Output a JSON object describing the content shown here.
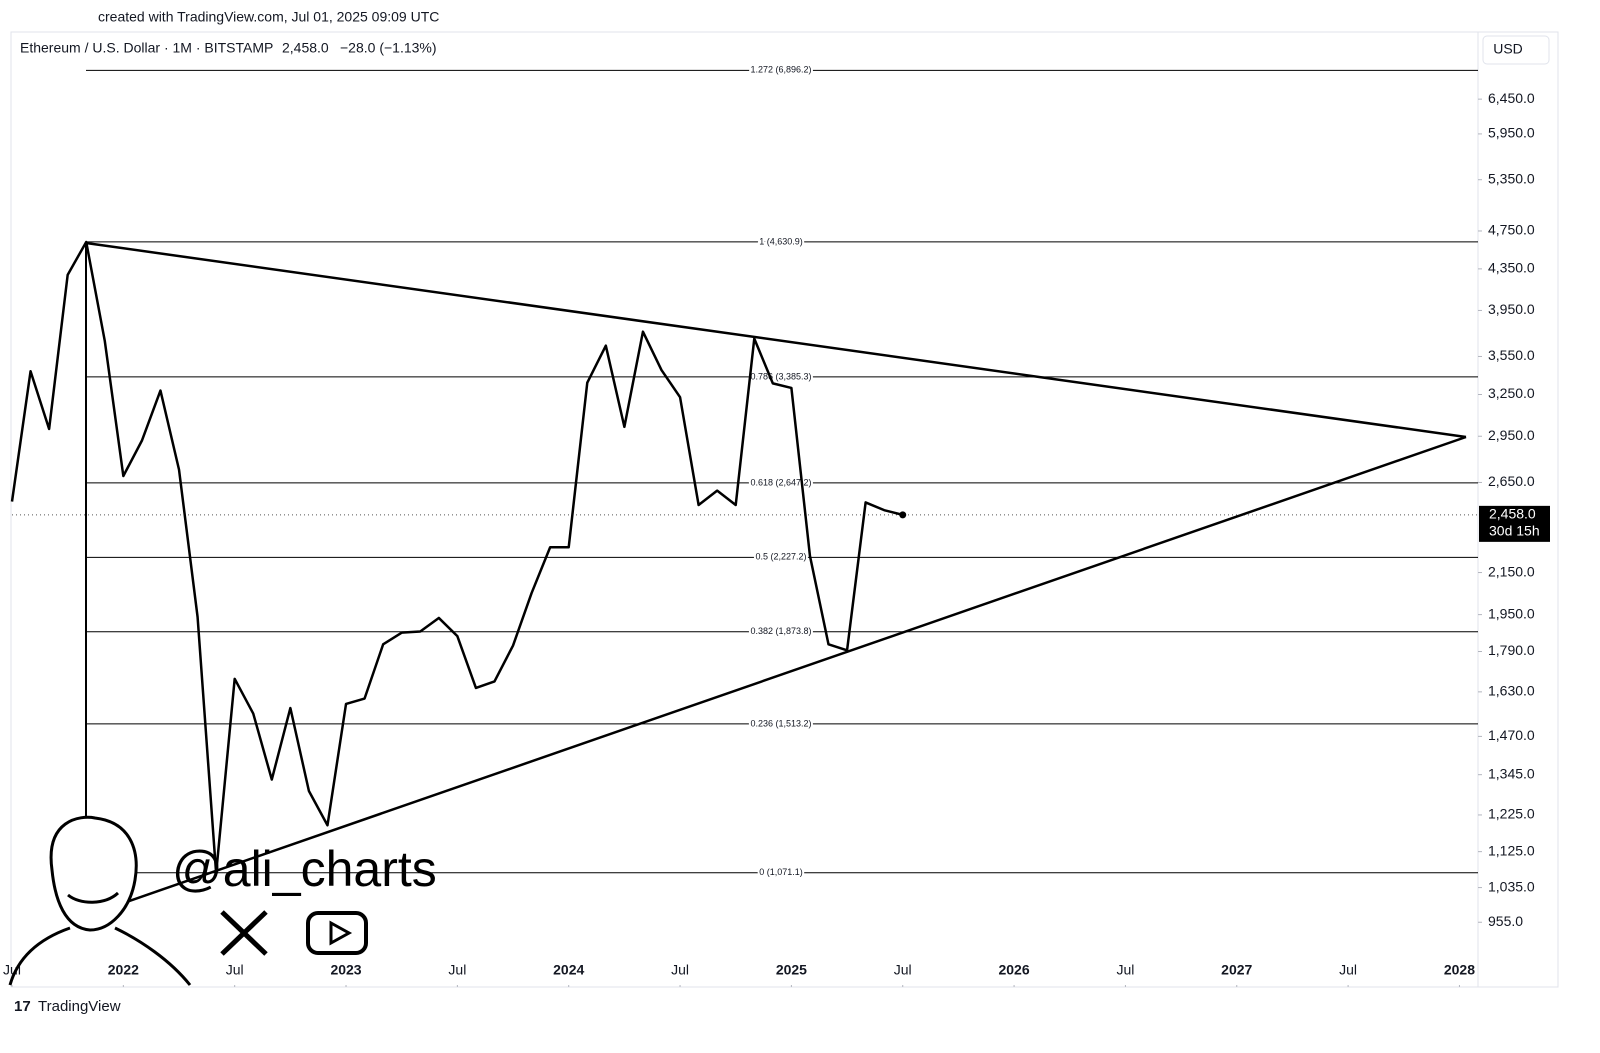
{
  "header": {
    "created": "created with TradingView.com, Jul 01, 2025 09:09 UTC",
    "symbol": "Ethereum / U.S. Dollar · 1M · BITSTAMP",
    "price": "2,458.0",
    "change": "−28.0 (−1.13%)",
    "currency": "USD"
  },
  "chart_data": {
    "type": "line",
    "log_scale": true,
    "x": [
      "2021-07",
      "2021-08",
      "2021-09",
      "2021-10",
      "2021-11",
      "2021-12",
      "2022-01",
      "2022-02",
      "2022-03",
      "2022-04",
      "2022-05",
      "2022-06",
      "2022-07",
      "2022-08",
      "2022-09",
      "2022-10",
      "2022-11",
      "2022-12",
      "2023-01",
      "2023-02",
      "2023-03",
      "2023-04",
      "2023-05",
      "2023-06",
      "2023-07",
      "2023-08",
      "2023-09",
      "2023-10",
      "2023-11",
      "2023-12",
      "2024-01",
      "2024-02",
      "2024-03",
      "2024-04",
      "2024-05",
      "2024-06",
      "2024-07",
      "2024-08",
      "2024-09",
      "2024-10",
      "2024-11",
      "2024-12",
      "2025-01",
      "2025-02",
      "2025-03",
      "2025-04",
      "2025-05",
      "2025-06",
      "2025-07"
    ],
    "series": [
      {
        "color": "#000000",
        "values": [
          2535,
          3430,
          3000,
          4290,
          4630,
          3680,
          2690,
          2920,
          3280,
          2730,
          1940,
          1070,
          1680,
          1550,
          1330,
          1570,
          1295,
          1196,
          1585,
          1605,
          1820,
          1870,
          1875,
          1935,
          1855,
          1645,
          1670,
          1815,
          2050,
          2280,
          2280,
          3340,
          3640,
          3015,
          3760,
          3440,
          3230,
          2515,
          2600,
          2515,
          3700,
          3335,
          3300,
          2235,
          1820,
          1795,
          2530,
          2485,
          2458
        ]
      }
    ],
    "xlim": [
      "2021-07",
      "2028-02"
    ],
    "xticks": [
      {
        "value": "2021-07",
        "label": "Jul"
      },
      {
        "value": "2022-01",
        "label": "2022"
      },
      {
        "value": "2022-07",
        "label": "Jul"
      },
      {
        "value": "2023-01",
        "label": "2023"
      },
      {
        "value": "2023-07",
        "label": "Jul"
      },
      {
        "value": "2024-01",
        "label": "2024"
      },
      {
        "value": "2024-07",
        "label": "Jul"
      },
      {
        "value": "2025-01",
        "label": "2025"
      },
      {
        "value": "2025-07",
        "label": "Jul"
      },
      {
        "value": "2026-01",
        "label": "2026"
      },
      {
        "value": "2026-07",
        "label": "Jul"
      },
      {
        "value": "2027-01",
        "label": "2027"
      },
      {
        "value": "2027-07",
        "label": "Jul"
      },
      {
        "value": "2028-01",
        "label": "2028"
      }
    ],
    "ylim": [
      881,
      7520
    ],
    "yticks": [
      {
        "value": 6450,
        "label": "6,450.0"
      },
      {
        "value": 5950,
        "label": "5,950.0"
      },
      {
        "value": 5350,
        "label": "5,350.0"
      },
      {
        "value": 4750,
        "label": "4,750.0"
      },
      {
        "value": 4350,
        "label": "4,350.0"
      },
      {
        "value": 3950,
        "label": "3,950.0"
      },
      {
        "value": 3550,
        "label": "3,550.0"
      },
      {
        "value": 3250,
        "label": "3,250.0"
      },
      {
        "value": 2950,
        "label": "2,950.0"
      },
      {
        "value": 2650,
        "label": "2,650.0"
      },
      {
        "value": 2150,
        "label": "2,150.0"
      },
      {
        "value": 1950,
        "label": "1,950.0"
      },
      {
        "value": 1790,
        "label": "1,790.0"
      },
      {
        "value": 1630,
        "label": "1,630.0"
      },
      {
        "value": 1470,
        "label": "1,470.0"
      },
      {
        "value": 1345,
        "label": "1,345.0"
      },
      {
        "value": 1225,
        "label": "1,225.0"
      },
      {
        "value": 1125,
        "label": "1,125.0"
      },
      {
        "value": 1035,
        "label": "1,035.0"
      },
      {
        "value": 955,
        "label": "955.0"
      }
    ],
    "fib_levels": [
      {
        "value": 6896.2,
        "label": "1.272 (6,896.2)"
      },
      {
        "value": 4630.9,
        "label": "1 (4,630.9)"
      },
      {
        "value": 3385.3,
        "label": "0.786 (3,385.3)"
      },
      {
        "value": 2647.2,
        "label": "0.618 (2,647.2)"
      },
      {
        "value": 2227.2,
        "label": "0.5 (2,227.2)"
      },
      {
        "value": 1873.8,
        "label": "0.382 (1,873.8)"
      },
      {
        "value": 1513.2,
        "label": "0.236 (1,513.2)"
      },
      {
        "value": 1071.1,
        "label": "0 (1,071.1)"
      }
    ],
    "last_price": {
      "value": 2458,
      "label": "2,458.0"
    },
    "countdown": "30d 15h"
  },
  "watermark": "@ali_charts",
  "footer": "TradingView"
}
